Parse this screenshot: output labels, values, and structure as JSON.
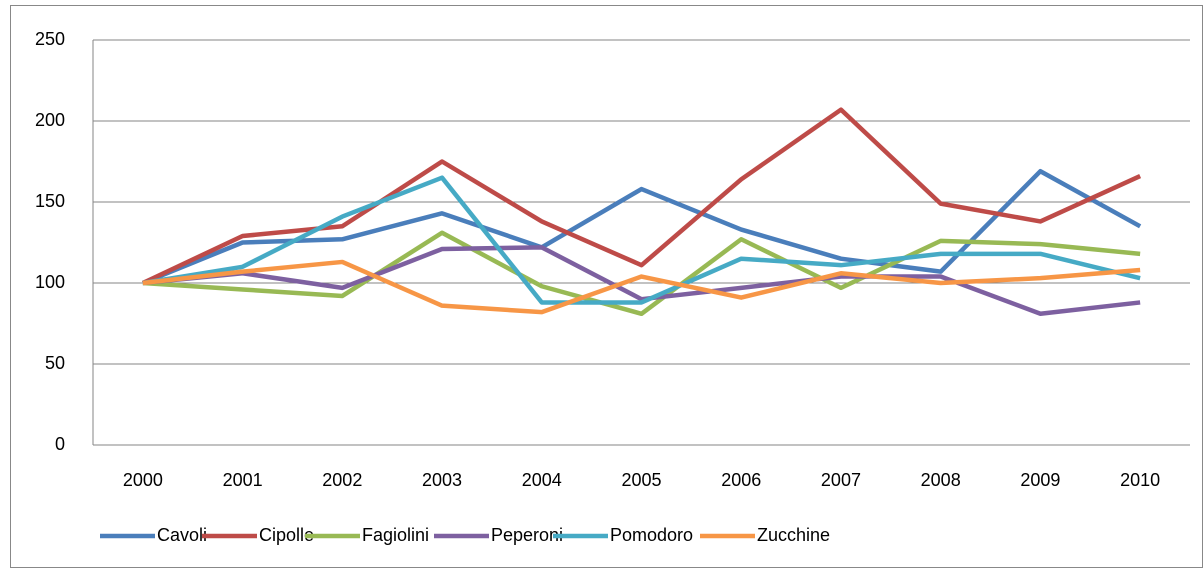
{
  "chart_data": {
    "type": "line",
    "categories": [
      "2000",
      "2001",
      "2002",
      "2003",
      "2004",
      "2005",
      "2006",
      "2007",
      "2008",
      "2009",
      "2010"
    ],
    "series": [
      {
        "name": "Cavoli",
        "color": "#4a7ebb",
        "values": [
          100,
          125,
          127,
          143,
          122,
          158,
          133,
          115,
          107,
          169,
          135
        ]
      },
      {
        "name": "Cipolle",
        "color": "#be4b48",
        "values": [
          100,
          129,
          135,
          175,
          138,
          111,
          164,
          207,
          149,
          138,
          166
        ]
      },
      {
        "name": "Fagiolini",
        "color": "#98b954",
        "values": [
          100,
          96,
          92,
          131,
          98,
          81,
          127,
          97,
          126,
          124,
          118
        ]
      },
      {
        "name": "Peperoni",
        "color": "#7d60a0",
        "values": [
          100,
          106,
          97,
          121,
          122,
          90,
          97,
          104,
          104,
          81,
          88
        ]
      },
      {
        "name": "Pomodoro",
        "color": "#46aac5",
        "values": [
          100,
          110,
          141,
          165,
          88,
          88,
          115,
          111,
          118,
          118,
          103
        ]
      },
      {
        "name": "Zucchine",
        "color": "#f79646",
        "values": [
          100,
          107,
          113,
          86,
          82,
          104,
          91,
          106,
          100,
          103,
          108
        ]
      }
    ],
    "ylim": [
      0,
      250
    ],
    "yticks": [
      0,
      50,
      100,
      150,
      200,
      250
    ],
    "grid": true,
    "legend": "bottom"
  }
}
